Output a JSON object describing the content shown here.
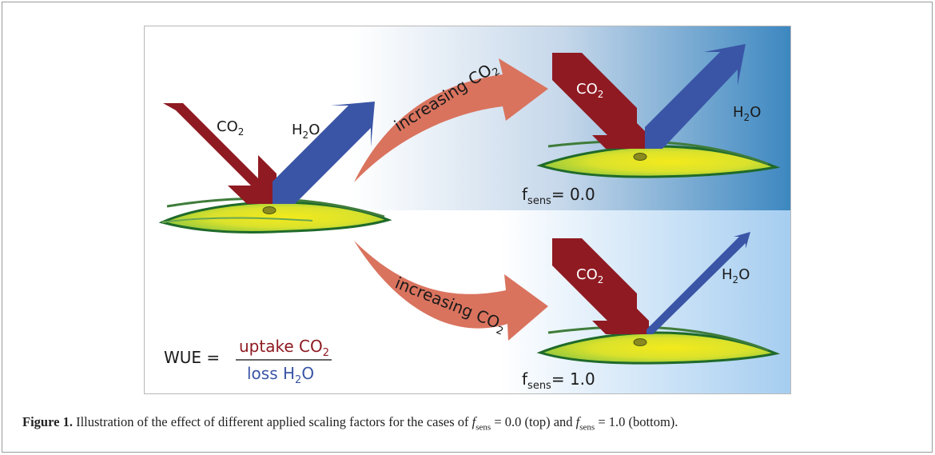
{
  "labels": {
    "co2": "CO",
    "h2o_h": "H",
    "h2o_o": "O",
    "sub2": "2",
    "increasing": "increasing CO",
    "fsens_f": "f",
    "fsens_sub": "sens",
    "top_value": "= 0.0",
    "bottom_value": "= 1.0"
  },
  "wue": {
    "lhs": "WUE =",
    "numerator": "uptake CO",
    "denominator_a": "loss H",
    "denominator_b": "O",
    "sub2": "2"
  },
  "caption": {
    "label": "Figure 1.",
    "text_a": " Illustration of the effect of different applied scaling factors for the cases of ",
    "f": "f",
    "sens": "sens",
    "eq_top": " = 0.0",
    "mid": " (top) and ",
    "eq_bottom": " = 1.0",
    "end": " (bottom)."
  },
  "colors": {
    "co2_arrow": "#8f1a22",
    "h2o_arrow": "#3a55a6",
    "curved_arrow": "#d9735e",
    "leaf_center": "#f0e51c",
    "leaf_edge": "#8cc63f",
    "bg_blue": "#3c87c0"
  }
}
